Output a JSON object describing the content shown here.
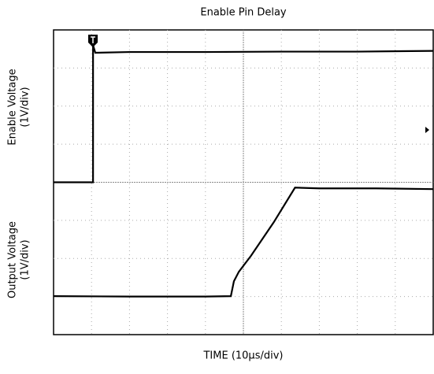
{
  "chart_data": {
    "type": "line",
    "title": "Enable Pin Delay",
    "xlabel": "TIME (10µs/div)",
    "ylabels": [
      [
        "Enable Voltage",
        "(1V/div)"
      ],
      [
        "Output Voltage",
        "(1V/div)"
      ]
    ],
    "xlim": [
      0,
      10
    ],
    "ylim": [
      0,
      8
    ],
    "grid": true,
    "series": [
      {
        "color": "#000000",
        "x": [
          0,
          1.04,
          1.04,
          1.1,
          2,
          4,
          6,
          8,
          10
        ],
        "values": [
          4.0,
          4.0,
          7.6,
          7.4,
          7.42,
          7.42,
          7.43,
          7.43,
          7.45
        ]
      },
      {
        "color": "#000000",
        "x": [
          0,
          2,
          4,
          4.67,
          4.75,
          4.88,
          5.2,
          5.8,
          6.36,
          7,
          8.5,
          10
        ],
        "values": [
          1.01,
          1.0,
          1.0,
          1.01,
          1.4,
          1.65,
          2.07,
          2.95,
          3.86,
          3.84,
          3.84,
          3.82
        ]
      }
    ]
  }
}
